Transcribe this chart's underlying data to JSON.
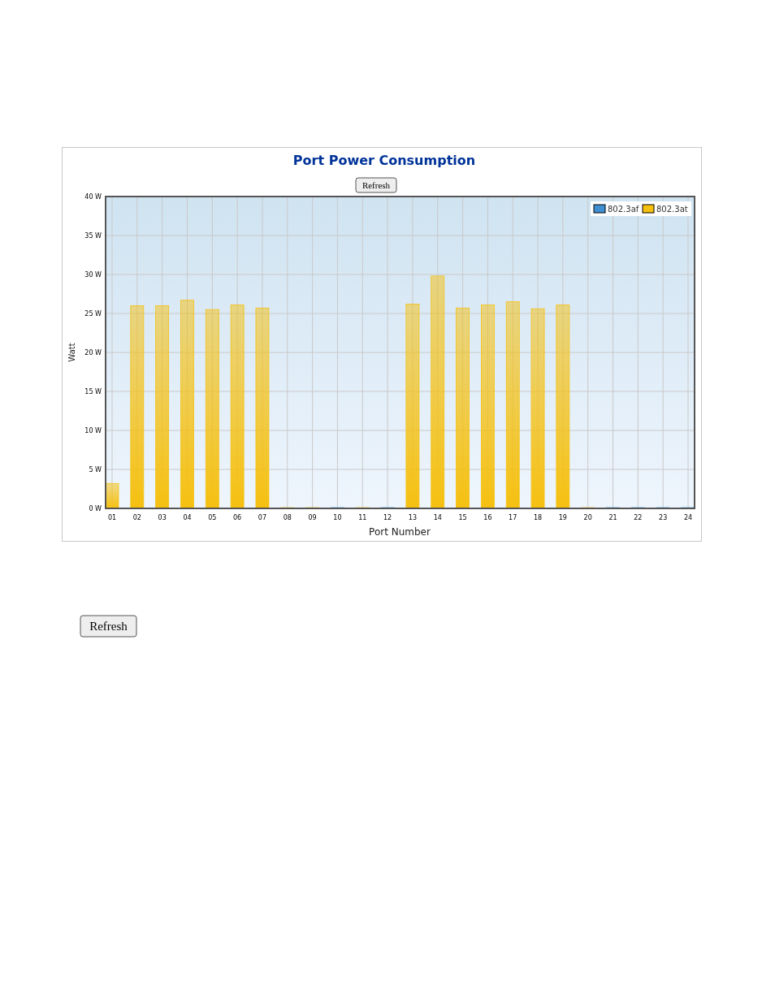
{
  "chart_data": {
    "type": "bar",
    "title": "Port Power Consumption",
    "xlabel": "Port Number",
    "ylabel": "Watt",
    "categories": [
      "01",
      "02",
      "03",
      "04",
      "05",
      "06",
      "07",
      "08",
      "09",
      "10",
      "11",
      "12",
      "13",
      "14",
      "15",
      "16",
      "17",
      "18",
      "19",
      "20",
      "21",
      "22",
      "23",
      "24"
    ],
    "series": [
      {
        "name": "802.3af",
        "color": "#3f8fd2",
        "values": [
          null,
          null,
          null,
          null,
          null,
          null,
          null,
          null,
          null,
          0.1,
          null,
          0.1,
          null,
          null,
          null,
          null,
          null,
          null,
          null,
          null,
          0.1,
          0.1,
          0.1,
          0.1
        ]
      },
      {
        "name": "802.3at",
        "color": "#f5c010",
        "values": [
          3.2,
          26.0,
          26.0,
          26.7,
          25.5,
          26.1,
          25.7,
          0.1,
          0.1,
          null,
          0.1,
          null,
          26.2,
          29.8,
          25.7,
          26.1,
          26.5,
          25.6,
          26.1,
          0.1,
          null,
          null,
          null,
          null
        ]
      }
    ],
    "ylim": [
      0,
      40
    ],
    "yticks": [
      {
        "value": 0,
        "label": "0 W"
      },
      {
        "value": 5,
        "label": "5 W"
      },
      {
        "value": 10,
        "label": "10 W"
      },
      {
        "value": 15,
        "label": "15 W"
      },
      {
        "value": 20,
        "label": "20 W"
      },
      {
        "value": 25,
        "label": "25 W"
      },
      {
        "value": 30,
        "label": "30 W"
      },
      {
        "value": 35,
        "label": "35 W"
      },
      {
        "value": 40,
        "label": "40 W"
      }
    ],
    "grid": true,
    "legend": "top right",
    "annotations": [
      "Refresh",
      "Refresh"
    ]
  }
}
